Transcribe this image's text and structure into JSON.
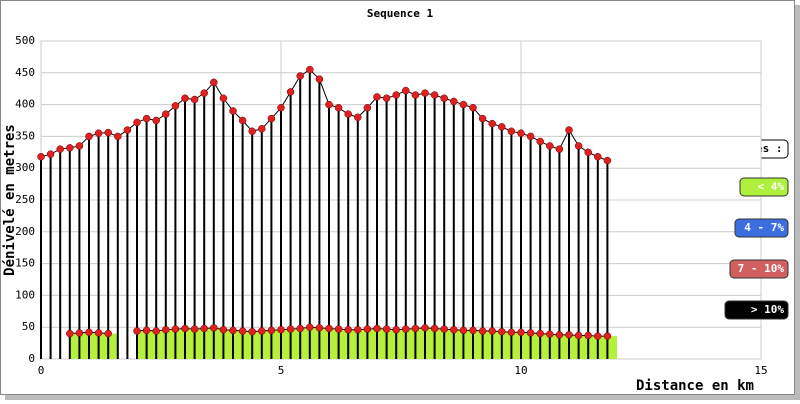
{
  "chart_data": {
    "type": "line",
    "title": "Sequence 1",
    "x_label": "Distance en km",
    "y_label": "Dénivelé en metres",
    "x": [
      0,
      0.2,
      0.4,
      0.6,
      0.8,
      1.0,
      1.2,
      1.4,
      1.6,
      1.8,
      2.0,
      2.2,
      2.4,
      2.6,
      2.8,
      3.0,
      3.2,
      3.4,
      3.6,
      3.8,
      4.0,
      4.2,
      4.4,
      4.6,
      4.8,
      5.0,
      5.2,
      5.4,
      5.6,
      5.8,
      6.0,
      6.2,
      6.4,
      6.6,
      6.8,
      7.0,
      7.2,
      7.4,
      7.6,
      7.8,
      8.0,
      8.2,
      8.4,
      8.6,
      8.8,
      9.0,
      9.2,
      9.4,
      9.6,
      9.8,
      10.0,
      10.2,
      10.4,
      10.6,
      10.8,
      11.0,
      11.2,
      11.4,
      11.6,
      11.8
    ],
    "series": [
      {
        "color": "#e02020",
        "values": [
          318,
          322,
          330,
          332,
          335,
          350,
          355,
          356,
          350,
          360,
          372,
          378,
          375,
          385,
          398,
          410,
          408,
          418,
          435,
          410,
          390,
          375,
          358,
          362,
          378,
          395,
          420,
          445,
          455,
          440,
          400,
          395,
          385,
          380,
          395,
          412,
          410,
          415,
          422,
          415,
          418,
          415,
          410,
          405,
          400,
          395,
          378,
          370,
          365,
          358,
          355,
          350,
          342,
          335,
          330,
          360,
          335,
          325,
          318,
          312
        ]
      },
      {
        "color": "#e02020",
        "values": [
          null,
          null,
          null,
          40,
          41,
          42,
          41,
          40,
          null,
          null,
          44,
          45,
          44,
          46,
          47,
          48,
          47,
          48,
          49,
          46,
          45,
          44,
          43,
          44,
          45,
          46,
          47,
          48,
          50,
          49,
          48,
          47,
          46,
          46,
          47,
          48,
          47,
          46,
          47,
          48,
          49,
          48,
          47,
          46,
          45,
          45,
          44,
          44,
          43,
          42,
          42,
          41,
          40,
          39,
          38,
          38,
          37,
          37,
          36,
          36
        ]
      }
    ],
    "fill_color": "#b4f03c",
    "line_color": "#000000",
    "xlim": [
      0,
      15
    ],
    "xticks": [
      0,
      5,
      10,
      15
    ],
    "ylim": [
      0,
      500
    ],
    "yticks": [
      0,
      50,
      100,
      150,
      200,
      250,
      300,
      350,
      400,
      450,
      500
    ],
    "grid": true,
    "legend": {
      "title": "Pentes :",
      "entries": [
        {
          "label": "< 4%",
          "color": "#aef03c"
        },
        {
          "label": "4 - 7%",
          "color": "#3c6ee0"
        },
        {
          "label": "7 - 10%",
          "color": "#d06060"
        },
        {
          "label": "> 10%",
          "color": "#000000"
        }
      ]
    }
  }
}
